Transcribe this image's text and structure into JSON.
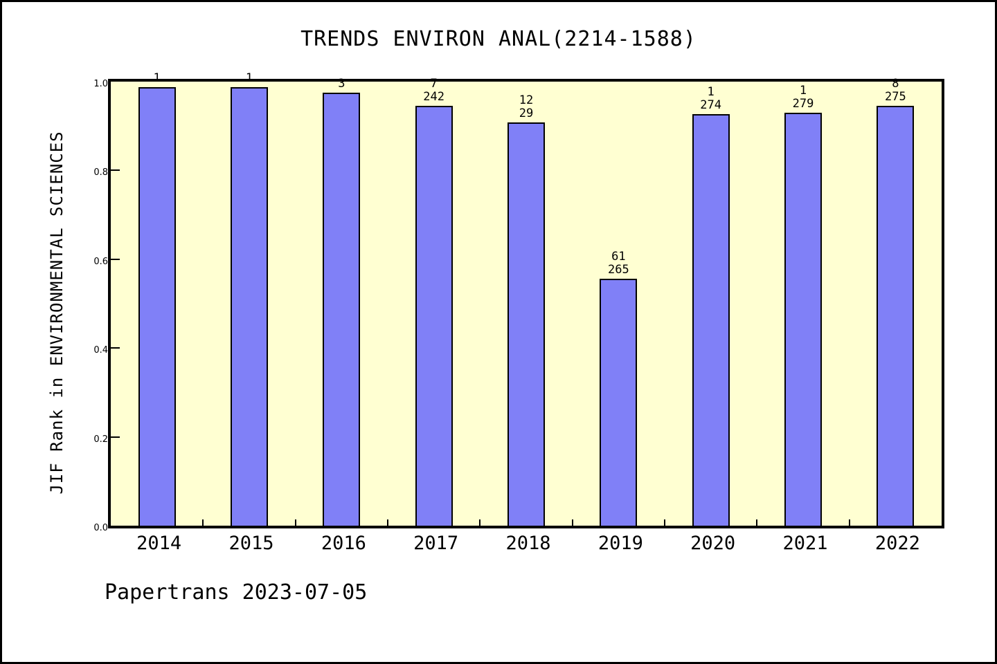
{
  "footer": "Papertrans 2023-07-05",
  "chart_data": {
    "type": "bar",
    "title": "TRENDS ENVIRON ANAL(2214-1588)",
    "xlabel": "",
    "ylabel": "JIF Rank in ENVIRONMENTAL SCIENCES",
    "categories": [
      "2014",
      "2015",
      "2016",
      "2017",
      "2018",
      "2019",
      "2020",
      "2021",
      "2022"
    ],
    "values": [
      0.988,
      0.988,
      0.975,
      0.946,
      0.908,
      0.556,
      0.927,
      0.93,
      0.946
    ],
    "bar_labels": [
      [
        "1"
      ],
      [
        "1"
      ],
      [
        "3"
      ],
      [
        "7",
        "242"
      ],
      [
        "12",
        "29"
      ],
      [
        "61",
        "265"
      ],
      [
        "1",
        "274"
      ],
      [
        "1",
        "279"
      ],
      [
        "8",
        "275"
      ]
    ],
    "yticks": [
      "0.0",
      "0.2",
      "0.4",
      "0.6",
      "0.8",
      "1.0"
    ],
    "ylim": [
      0,
      1
    ],
    "grid": "off",
    "legend": "none",
    "colors": {
      "bar_fill": "#8080f7",
      "bar_edge": "#000000",
      "plot_background": "#ffffd2",
      "axis": "#000000",
      "text": "#000000",
      "page_background": "#ffffff"
    }
  }
}
